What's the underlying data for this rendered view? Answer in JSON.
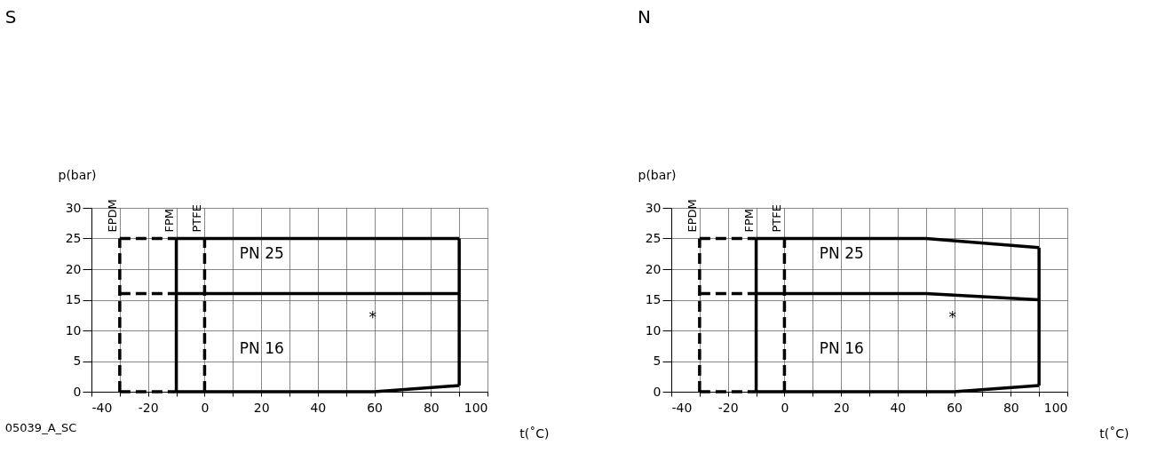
{
  "chart_data": [
    {
      "type": "line",
      "title": "S",
      "xlabel": "t(˚C)",
      "ylabel": "p(bar)",
      "xlim": [
        -40,
        100
      ],
      "ylim": [
        0,
        30
      ],
      "xticks": [
        -40,
        {
          "value": -30,
          "label": null
        },
        -20,
        {
          "value": -10,
          "label": null
        },
        0,
        {
          "value": 10,
          "label": null
        },
        20,
        {
          "value": 30,
          "label": null
        },
        40,
        {
          "value": 50,
          "label": null
        },
        60,
        {
          "value": 70,
          "label": null
        },
        80,
        {
          "value": 90,
          "label": null
        },
        100
      ],
      "yticks": [
        0,
        5,
        10,
        15,
        20,
        25,
        30
      ],
      "grid": true,
      "marker": "none",
      "series": [
        {
          "color": "#000000",
          "line_style": "solid",
          "x": [
            -10,
            90
          ],
          "values": [
            25,
            25
          ]
        },
        {
          "color": "#000000",
          "line_style": "solid",
          "x": [
            -10,
            90
          ],
          "values": [
            16,
            16
          ]
        },
        {
          "color": "#000000",
          "line_style": "solid",
          "x": [
            -10,
            60,
            90
          ],
          "values": [
            0,
            0,
            1
          ]
        },
        {
          "color": "#000000",
          "line_style": "solid",
          "x": [
            -10,
            -10
          ],
          "values": [
            0,
            25
          ]
        },
        {
          "color": "#000000",
          "line_style": "solid",
          "x": [
            90,
            90
          ],
          "values": [
            1,
            25
          ]
        },
        {
          "color": "#000000",
          "line_style": "dashed",
          "x": [
            -30,
            -10
          ],
          "values": [
            25,
            25
          ]
        },
        {
          "color": "#000000",
          "line_style": "dashed",
          "x": [
            -30,
            -10
          ],
          "values": [
            16,
            16
          ]
        },
        {
          "color": "#000000",
          "line_style": "dashed",
          "x": [
            -30,
            -10
          ],
          "values": [
            0,
            0
          ]
        },
        {
          "color": "#000000",
          "line_style": "dashed",
          "x": [
            -30,
            -30
          ],
          "values": [
            0,
            25
          ]
        },
        {
          "color": "#000000",
          "line_style": "dashed",
          "x": [
            0,
            0
          ],
          "values": [
            0,
            25
          ]
        }
      ],
      "annotations": [
        {
          "text": "EPDM",
          "x": -30,
          "y": 25
        },
        {
          "text": "FPM",
          "x": -10,
          "y": 25
        },
        {
          "text": "PTFE",
          "x": 0,
          "y": 25
        },
        "PN 25",
        "PN 16",
        "*",
        "05039_A_SC"
      ]
    },
    {
      "type": "line",
      "title": "N",
      "xlabel": "t(˚C)",
      "ylabel": "p(bar)",
      "xlim": [
        -40,
        100
      ],
      "ylim": [
        0,
        30
      ],
      "xticks": [
        -40,
        {
          "value": -30,
          "label": null
        },
        -20,
        {
          "value": -10,
          "label": null
        },
        0,
        {
          "value": 10,
          "label": null
        },
        20,
        {
          "value": 30,
          "label": null
        },
        40,
        {
          "value": 50,
          "label": null
        },
        60,
        {
          "value": 70,
          "label": null
        },
        80,
        {
          "value": 90,
          "label": null
        },
        100
      ],
      "yticks": [
        0,
        5,
        10,
        15,
        20,
        25,
        30
      ],
      "grid": true,
      "marker": "none",
      "series": [
        {
          "color": "#000000",
          "line_style": "solid",
          "x": [
            -10,
            50,
            90
          ],
          "values": [
            25,
            25,
            23.5
          ]
        },
        {
          "color": "#000000",
          "line_style": "solid",
          "x": [
            -10,
            50,
            90
          ],
          "values": [
            16,
            16,
            15
          ]
        },
        {
          "color": "#000000",
          "line_style": "solid",
          "x": [
            -10,
            60,
            90
          ],
          "values": [
            0,
            0,
            1
          ]
        },
        {
          "color": "#000000",
          "line_style": "solid",
          "x": [
            -10,
            -10
          ],
          "values": [
            0,
            25
          ]
        },
        {
          "color": "#000000",
          "line_style": "solid",
          "x": [
            90,
            90
          ],
          "values": [
            1,
            23.5
          ]
        },
        {
          "color": "#000000",
          "line_style": "dashed",
          "x": [
            -30,
            -10
          ],
          "values": [
            25,
            25
          ]
        },
        {
          "color": "#000000",
          "line_style": "dashed",
          "x": [
            -30,
            -10
          ],
          "values": [
            16,
            16
          ]
        },
        {
          "color": "#000000",
          "line_style": "dashed",
          "x": [
            -30,
            -10
          ],
          "values": [
            0,
            0
          ]
        },
        {
          "color": "#000000",
          "line_style": "dashed",
          "x": [
            -30,
            -30
          ],
          "values": [
            0,
            25
          ]
        },
        {
          "color": "#000000",
          "line_style": "dashed",
          "x": [
            0,
            0
          ],
          "values": [
            0,
            25
          ]
        }
      ],
      "annotations": [
        {
          "text": "EPDM",
          "x": -30,
          "y": 25
        },
        {
          "text": "FPM",
          "x": -10,
          "y": 25
        },
        {
          "text": "PTFE",
          "x": 0,
          "y": 25
        },
        "PN 25",
        "PN 16",
        "*"
      ]
    }
  ]
}
